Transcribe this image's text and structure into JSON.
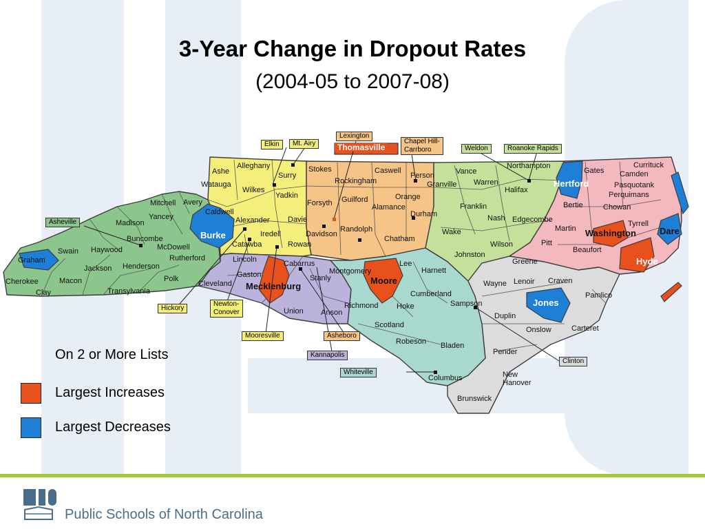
{
  "title": "3-Year Change in Dropout Rates",
  "subtitle": "(2004-05 to 2007-08)",
  "colors": {
    "west": "#8dc68c",
    "northwest": "#f4ef7a",
    "piedmont": "#f6c487",
    "north_central": "#c4e09a",
    "northeast": "#f4b9be",
    "southwest_central": "#bcb3dd",
    "south_central": "#a9d8cf",
    "southeast": "#dcdcdc",
    "increase": "#e8501c",
    "decrease": "#1e7fd6"
  },
  "counties": {
    "cherokee": "Cherokee",
    "clay": "Clay",
    "graham": "Graham",
    "swain": "Swain",
    "macon": "Macon",
    "jackson": "Jackson",
    "haywood": "Haywood",
    "transylvania": "Transylvania",
    "henderson": "Henderson",
    "polk": "Polk",
    "buncombe": "Buncombe",
    "madison": "Madison",
    "yancey": "Yancey",
    "mitchell": "Mitchell",
    "avery": "Avery",
    "mcdowell": "McDowell",
    "rutherford": "Rutherford",
    "burke": "Burke",
    "ashe": "Ashe",
    "alleghany": "Alleghany",
    "watauga": "Watauga",
    "wilkes": "Wilkes",
    "surry": "Surry",
    "yadkin": "Yadkin",
    "caldwell": "Caldwell",
    "alexander": "Alexander",
    "davie": "Davie",
    "iredell": "Iredell",
    "catawba": "Catawba",
    "rowan": "Rowan",
    "stokes": "Stokes",
    "rockingham": "Rockingham",
    "caswell": "Caswell",
    "person": "Person",
    "forsyth": "Forsyth",
    "guilford": "Guilford",
    "alamance": "Alamance",
    "orange": "Orange",
    "durham": "Durham",
    "davidson": "Davidson",
    "randolph": "Randolph",
    "chatham": "Chatham",
    "vance": "Vance",
    "warren": "Warren",
    "granville": "Granville",
    "franklin": "Franklin",
    "halifax": "Halifax",
    "northampton": "Northampton",
    "nash": "Nash",
    "edgecombe": "Edgecombe",
    "wake": "Wake",
    "wilson": "Wilson",
    "johnston": "Johnston",
    "hertford": "Hertford",
    "gates": "Gates",
    "currituck": "Currituck",
    "camden": "Camden",
    "pasquotank": "Pasquotank",
    "perquimans": "Perquimans",
    "chowan": "Chowan",
    "bertie": "Bertie",
    "martin": "Martin",
    "tyrrell": "Tyrrell",
    "dare": "Dare",
    "washington": "Washington",
    "pitt": "Pitt",
    "beaufort": "Beaufort",
    "hyde": "Hyde",
    "lincoln": "Lincoln",
    "gaston": "Gaston",
    "cleveland": "Cleveland",
    "mecklenburg": "Mecklenburg",
    "cabarrus": "Cabarrus",
    "stanly": "Stanly",
    "union": "Union",
    "anson": "Anson",
    "montgomery": "Montgomery",
    "moore": "Moore",
    "lee": "Lee",
    "harnett": "Harnett",
    "richmond": "Richmond",
    "hoke": "Hoke",
    "cumberland": "Cumberland",
    "scotland": "Scotland",
    "robeson": "Robeson",
    "bladen": "Bladen",
    "columbus": "Columbus",
    "brunswick": "Brunswick",
    "greene": "Greene",
    "wayne": "Wayne",
    "lenoir": "Lenoir",
    "craven": "Craven",
    "pamlico": "Pamlico",
    "jones": "Jones",
    "sampson": "Sampson",
    "duplin": "Duplin",
    "onslow": "Onslow",
    "carteret": "Carteret",
    "pender": "Pender",
    "new": "New",
    "hanover": "Hanover"
  },
  "callouts": {
    "elkin": "Elkin",
    "mt_airy": "Mt. Airy",
    "lexington": "Lexington",
    "thomasville": "Thomasville",
    "chapel_hill_1": "Chapel Hill-",
    "chapel_hill_2": "Carrboro",
    "weldon": "Weldon",
    "roanoke_rapids": "Roanoke Rapids",
    "asheville": "Asheville",
    "hickory": "Hickory",
    "newton_1": "Newton-",
    "newton_2": "Conover",
    "mooresville": "Mooresville",
    "asheboro": "Asheboro",
    "kannapolis": "Kannapolis",
    "whiteville": "Whiteville",
    "clinton": "Clinton"
  },
  "legend": {
    "title": "On 2 or More Lists",
    "items": [
      {
        "label": "Largest Increases",
        "color": "#e8501c"
      },
      {
        "label": "Largest Decreases",
        "color": "#1e7fd6"
      }
    ]
  },
  "footer": {
    "organization": "Public Schools of North Carolina"
  }
}
